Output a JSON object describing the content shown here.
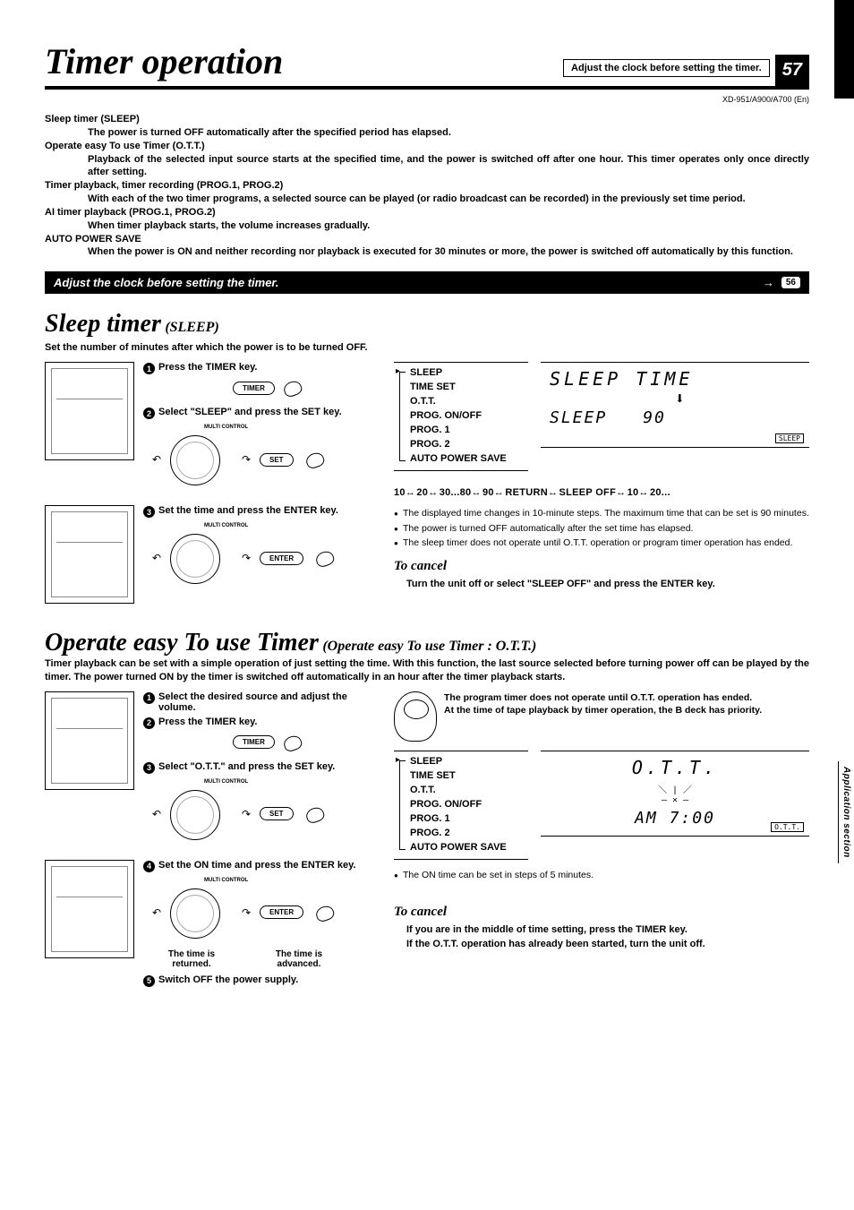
{
  "header": {
    "title": "Timer operation",
    "top_note": "Adjust the clock before setting the timer.",
    "page_number": "57",
    "model_line": "XD-951/A900/A700 (En)"
  },
  "intro": [
    {
      "head": "Sleep timer (SLEEP)",
      "body": "The power is turned OFF automatically after the specified period has elapsed.",
      "justify": false
    },
    {
      "head": "Operate easy To use Timer (O.T.T.)",
      "body": "Playback of the selected input source starts at the specified time, and the power is switched off after one hour. This timer operates only once directly after setting.",
      "justify": true
    },
    {
      "head": "Timer playback, timer recording (PROG.1, PROG.2)",
      "body": "With each of the two timer programs, a selected source can be played (or radio broadcast can be recorded) in the previously set time period.",
      "justify": true
    },
    {
      "head": "AI timer playback (PROG.1, PROG.2)",
      "body": "When timer playback starts, the volume increases gradually.",
      "justify": false
    },
    {
      "head": "AUTO POWER SAVE",
      "body": "When the power is ON and neither recording nor playback is executed for 30 minutes or more, the power is switched off automatically by this function.",
      "justify": true
    }
  ],
  "clock_bar": {
    "text": "Adjust the clock before setting the timer.",
    "ref": "56"
  },
  "sleep": {
    "title_big": "Sleep timer",
    "title_small": "(SLEEP)",
    "subtitle": "Set the number of minutes after which the power is to be turned OFF.",
    "steps": [
      {
        "n": "1",
        "text": "Press the TIMER key.",
        "key": "TIMER"
      },
      {
        "n": "2",
        "text": "Select \"SLEEP\" and press the SET key.",
        "key": "SET",
        "dial_label": "MULTI CONTROL"
      },
      {
        "n": "3",
        "text": "Set the time and press the ENTER key.",
        "key": "ENTER",
        "dial_label": "MULTI CONTROL"
      }
    ],
    "menu": [
      "SLEEP",
      "TIME SET",
      "O.T.T.",
      "PROG. ON/OFF",
      "PROG. 1",
      "PROG. 2",
      "AUTO POWER SAVE"
    ],
    "lcd": {
      "line1": "SLEEP  TIME",
      "line2a": "SLEEP",
      "line2b": "90",
      "badge": "SLEEP"
    },
    "sequence": "10↔ 20↔ 30...80↔ 90↔ RETURN↔ SLEEP OFF↔ 10↔ 20...",
    "bullets": [
      "The displayed time changes in 10-minute steps. The maximum time that can be set is 90 minutes.",
      "The power is turned OFF automatically after the set time has elapsed.",
      "The sleep timer does not operate until O.T.T. operation or program timer operation has ended."
    ],
    "cancel_h": "To cancel",
    "cancel_t": "Turn the unit off or select \"SLEEP OFF\" and press the ENTER key."
  },
  "ott": {
    "title_big": "Operate easy To use Timer",
    "title_small": "(Operate easy To use Timer : O.T.T.)",
    "intro": "Timer playback can be set with a simple operation of just setting the time. With this function, the last source selected before turning power off can be played by the timer. The power turned ON by the timer is switched off automatically in an hour after the timer playback starts.",
    "steps": [
      {
        "n": "1",
        "text": "Select the desired source and adjust the volume."
      },
      {
        "n": "2",
        "text": "Press the TIMER key.",
        "key": "TIMER"
      },
      {
        "n": "3",
        "text": "Select \"O.T.T.\" and press the SET key.",
        "key": "SET",
        "dial_label": "MULTI CONTROL"
      },
      {
        "n": "4",
        "text": "Set the ON time and press the ENTER key.",
        "key": "ENTER",
        "dial_label": "MULTI CONTROL"
      },
      {
        "n": "5",
        "text": "Switch OFF the power supply."
      }
    ],
    "dial_captions": {
      "left": "The time is returned.",
      "right": "The time is advanced."
    },
    "mascot_text": "The program timer does not operate until O.T.T. operation has ended.\nAt the time of tape playback by timer operation, the B deck has priority.",
    "menu": [
      "SLEEP",
      "TIME SET",
      "O.T.T.",
      "PROG. ON/OFF",
      "PROG. 1",
      "PROG. 2",
      "AUTO POWER SAVE"
    ],
    "lcd": {
      "line1": "O.T.T.",
      "line2a": "",
      "line2b": "AM 7:00",
      "badge": "O.T.T."
    },
    "bullet": "The ON time can be set in steps of 5 minutes.",
    "cancel_h": "To cancel",
    "cancel_t1": "If you are in the middle of time setting, press the TIMER key.",
    "cancel_t2": "If the O.T.T. operation has already been started, turn the unit off."
  },
  "side_tab": "Application section"
}
